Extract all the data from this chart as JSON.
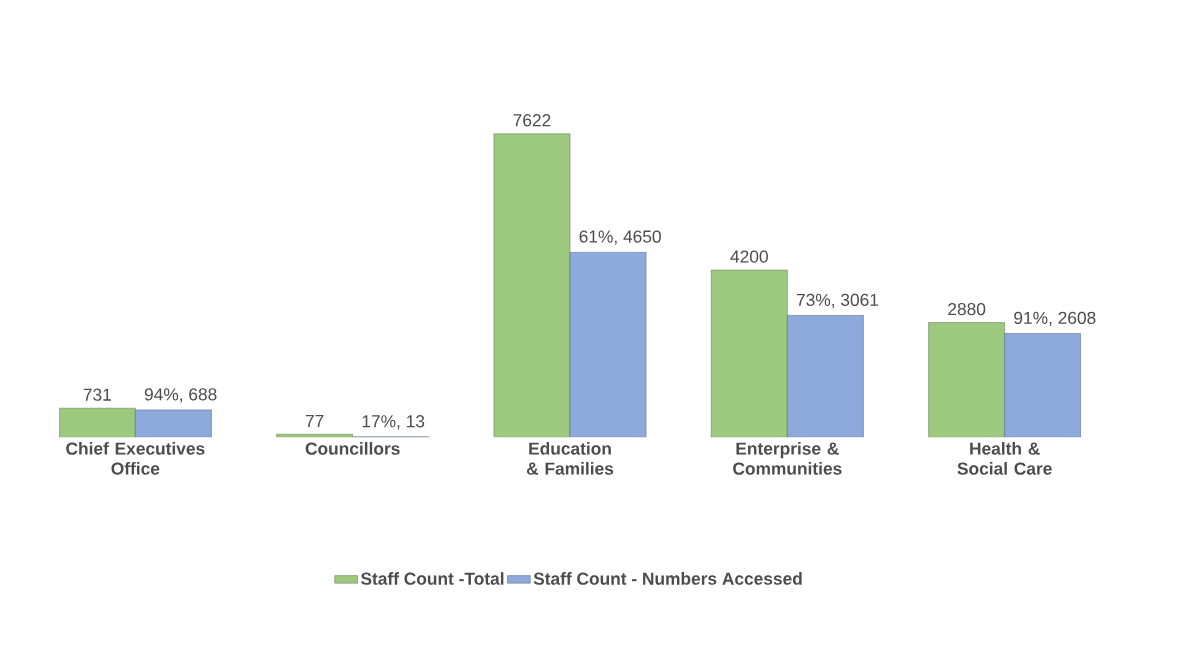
{
  "chart_data": {
    "type": "bar",
    "categories": [
      "Chief Executives Office",
      "Councillors",
      "Education & Families",
      "Enterprise & Communities",
      "Health & Social Care"
    ],
    "series": [
      {
        "name": "Staff Count -Total",
        "color": "#9dc97f",
        "values": [
          731,
          77,
          7622,
          4200,
          2880
        ],
        "value_labels": [
          "731",
          "77",
          "7622",
          "4200",
          "2880"
        ]
      },
      {
        "name": "Staff Count - Numbers Accessed",
        "color": "#8ea9db",
        "values": [
          688,
          13,
          4650,
          3061,
          2608
        ],
        "value_labels": [
          "94%, 688",
          "17%, 13",
          "61%, 4650",
          "73%, 3061",
          "91%, 2608"
        ]
      }
    ],
    "legend": "bottom"
  }
}
